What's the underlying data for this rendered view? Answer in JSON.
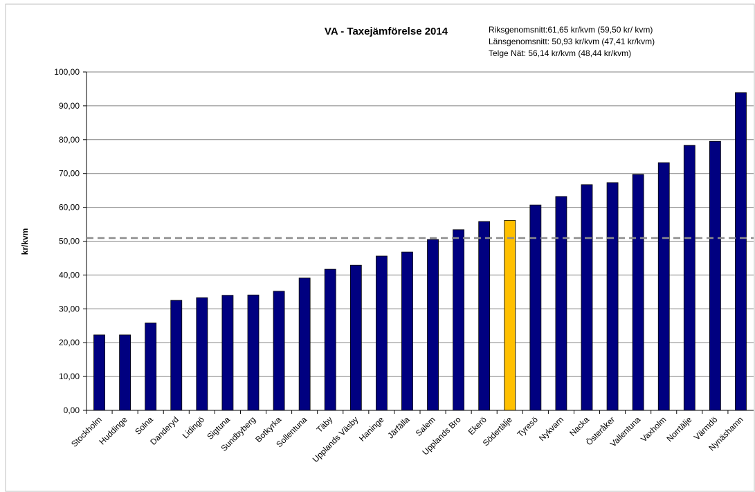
{
  "chart_data": {
    "type": "bar",
    "title": "VA - Taxejämförelse 2014",
    "annotations": [
      "Riksgenomsnitt:61,65 kr/kvm (59,50 kr/ kvm)",
      "Länsgenomsnitt: 50,93 kr/kvm (47,41 kr/kvm)",
      "Telge Nät:  56,14 kr/kvm  (48,44 kr/kvm)"
    ],
    "y_label": "kr/kvm",
    "categories": [
      "Stockholm",
      "Huddinge",
      "Solna",
      "Danderyd",
      "Lidingö",
      "Sigtuna",
      "Sundbyberg",
      "Botkyrka",
      "Sollentuna",
      "Täby",
      "Upplands Väsby",
      "Haninge",
      "Järfälla",
      "Salem",
      "Upplands Bro",
      "Ekerö",
      "Södertälje",
      "Tyresö",
      "Nykvarn",
      "Nacka",
      "Österåker",
      "Vallentuna",
      "Vaxholm",
      "Norrtälje",
      "Värmdö",
      "Nynäshamn"
    ],
    "values": [
      22.3,
      22.3,
      25.8,
      32.5,
      33.3,
      34.0,
      34.1,
      35.2,
      39.1,
      41.7,
      42.9,
      45.6,
      46.8,
      50.5,
      53.4,
      55.8,
      56.14,
      60.7,
      63.2,
      66.7,
      67.3,
      69.7,
      73.2,
      78.3,
      79.5,
      93.9
    ],
    "colors": [
      "#000080",
      "#000080",
      "#000080",
      "#000080",
      "#000080",
      "#000080",
      "#000080",
      "#000080",
      "#000080",
      "#000080",
      "#000080",
      "#000080",
      "#000080",
      "#000080",
      "#000080",
      "#000080",
      "#ffc000",
      "#000080",
      "#000080",
      "#000080",
      "#000080",
      "#000080",
      "#000080",
      "#000080",
      "#000080",
      "#000080"
    ],
    "reference_line": 50.93,
    "ylim": [
      0,
      100
    ],
    "yticks": [
      {
        "value": 0,
        "label": "0,00"
      },
      {
        "value": 10,
        "label": "10,00"
      },
      {
        "value": 20,
        "label": "20,00"
      },
      {
        "value": 30,
        "label": "30,00"
      },
      {
        "value": 40,
        "label": "40,00"
      },
      {
        "value": 50,
        "label": "50,00"
      },
      {
        "value": 60,
        "label": "60,00"
      },
      {
        "value": 70,
        "label": "70,00"
      },
      {
        "value": 80,
        "label": "80,00"
      },
      {
        "value": 90,
        "label": "90,00"
      },
      {
        "value": 100,
        "label": "100,00"
      }
    ],
    "grid": true
  }
}
